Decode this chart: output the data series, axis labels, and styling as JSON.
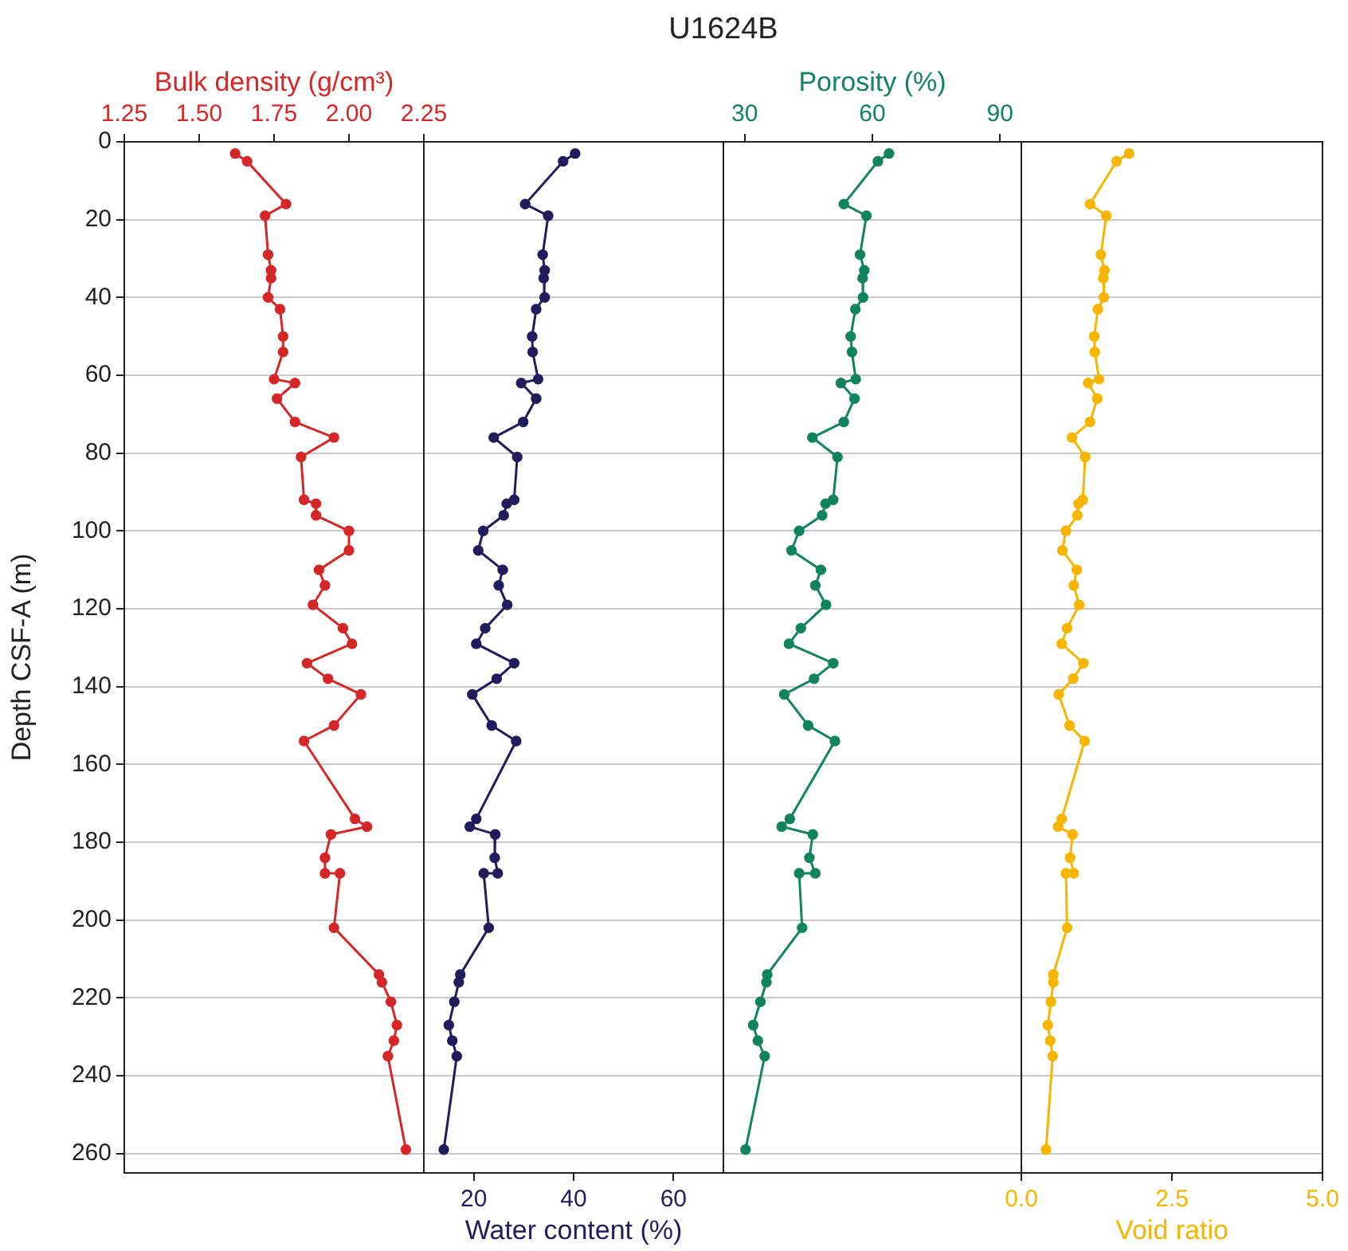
{
  "chart_data": [
    {
      "type": "line",
      "xlabel": "Bulk density (g/cm³)",
      "ylabel": "Depth CSF-A (m)",
      "xlim": [
        1.25,
        2.25
      ],
      "xticks": [
        1.25,
        {
          "value": 1.5,
          "label": "1.50"
        },
        1.75,
        {
          "value": 2,
          "label": "2.00"
        },
        2.25
      ],
      "ylim": [
        265,
        0
      ],
      "yticks": [
        0,
        20,
        40,
        60,
        80,
        100,
        120,
        140,
        160,
        180,
        200,
        220,
        240,
        260
      ],
      "grid": "y",
      "marker": "circle",
      "series": [
        {
          "color": "#d62728",
          "x": [
            1.62,
            1.66,
            1.79,
            1.72,
            1.73,
            1.74,
            1.74,
            1.73,
            1.77,
            1.78,
            1.78,
            1.75,
            1.82,
            1.76,
            1.82,
            1.95,
            1.84,
            1.85,
            1.89,
            1.89,
            2.0,
            2.0,
            1.9,
            1.92,
            1.88,
            1.98,
            2.01,
            1.86,
            1.93,
            2.04,
            1.95,
            1.85,
            2.02,
            2.06,
            1.94,
            1.92,
            1.92,
            1.97,
            1.95,
            2.1,
            2.11,
            2.14,
            2.16,
            2.15,
            2.13,
            2.19
          ],
          "values": [
            3,
            5,
            16,
            19,
            29,
            33,
            35,
            40,
            43,
            50,
            54,
            61,
            62,
            66,
            72,
            76,
            81,
            92,
            93,
            96,
            100,
            105,
            110,
            114,
            119,
            125,
            129,
            134,
            138,
            142,
            150,
            154,
            174,
            176,
            178,
            184,
            188,
            188,
            202,
            214,
            216,
            221,
            227,
            231,
            235,
            259
          ]
        }
      ]
    },
    {
      "type": "line",
      "xlabel": "Water content (%)",
      "xlim": [
        10,
        70
      ],
      "xticks": [
        20,
        40,
        60
      ],
      "ylim": [
        265,
        0
      ],
      "yticks": [
        0,
        20,
        40,
        60,
        80,
        100,
        120,
        140,
        160,
        180,
        200,
        220,
        240,
        260
      ],
      "grid": "y",
      "tick_labels": "x",
      "marker": "circle",
      "series": [
        {
          "color": "#221c5c",
          "x": [
            40.3,
            37.9,
            30.3,
            34.9,
            33.8,
            34.2,
            34.0,
            34.2,
            32.5,
            31.7,
            31.8,
            32.9,
            29.5,
            32.5,
            29.9,
            24.0,
            28.7,
            28.1,
            26.6,
            26.0,
            21.9,
            20.9,
            25.8,
            25.0,
            26.7,
            22.3,
            20.5,
            28.1,
            24.6,
            19.7,
            23.6,
            28.5,
            20.5,
            19.2,
            24.3,
            24.2,
            24.8,
            22.0,
            23.0,
            17.3,
            17.0,
            16.1,
            15.0,
            15.7,
            16.6,
            14.0
          ],
          "values": [
            3,
            5,
            16,
            19,
            29,
            33,
            35,
            40,
            43,
            50,
            54,
            61,
            62,
            66,
            72,
            76,
            81,
            92,
            93,
            96,
            100,
            105,
            110,
            114,
            119,
            125,
            129,
            134,
            138,
            142,
            150,
            154,
            174,
            176,
            178,
            184,
            188,
            188,
            202,
            214,
            216,
            221,
            227,
            231,
            235,
            259
          ]
        }
      ]
    },
    {
      "type": "line",
      "title": "U1624B",
      "xlabel": "Porosity (%)",
      "xlim": [
        25,
        95
      ],
      "xticks": [
        30,
        60,
        90
      ],
      "ylim": [
        265,
        0
      ],
      "yticks": [
        0,
        20,
        40,
        60,
        80,
        100,
        120,
        140,
        160,
        180,
        200,
        220,
        240,
        260
      ],
      "grid": "y",
      "tick_labels": "x",
      "marker": "circle",
      "series": [
        {
          "color": "#11845b",
          "x": [
            63.9,
            61.3,
            53.3,
            58.6,
            57.1,
            58.1,
            57.7,
            57.8,
            56.0,
            54.9,
            55.2,
            56.1,
            52.6,
            55.8,
            53.3,
            45.9,
            51.8,
            50.8,
            49.0,
            48.2,
            42.8,
            41.0,
            47.9,
            46.6,
            49.1,
            43.2,
            40.4,
            50.8,
            46.3,
            39.3,
            44.9,
            51.2,
            40.6,
            38.7,
            46.0,
            45.2,
            46.6,
            42.8,
            43.5,
            35.3,
            35.1,
            33.7,
            32.0,
            33.1,
            34.7,
            30.2
          ],
          "values": [
            3,
            5,
            16,
            19,
            29,
            33,
            35,
            40,
            43,
            50,
            54,
            61,
            62,
            66,
            72,
            76,
            81,
            92,
            93,
            96,
            100,
            105,
            110,
            114,
            119,
            125,
            129,
            134,
            138,
            142,
            150,
            154,
            174,
            176,
            178,
            184,
            188,
            188,
            202,
            214,
            216,
            221,
            227,
            231,
            235,
            259
          ]
        }
      ]
    },
    {
      "type": "line",
      "xlabel": "Void ratio",
      "xlim": [
        0,
        5
      ],
      "xticks": [
        {
          "value": 0,
          "label": "0.0"
        },
        2.5,
        {
          "value": 5,
          "label": "5.0"
        }
      ],
      "ylim": [
        265,
        0
      ],
      "yticks": [
        0,
        20,
        40,
        60,
        80,
        100,
        120,
        140,
        160,
        180,
        200,
        220,
        240,
        260
      ],
      "grid": "y",
      "tick_labels": "x",
      "marker": "circle",
      "series": [
        {
          "color": "#f7b500",
          "x": [
            1.79,
            1.58,
            1.14,
            1.41,
            1.32,
            1.38,
            1.36,
            1.37,
            1.27,
            1.21,
            1.22,
            1.29,
            1.11,
            1.26,
            1.14,
            0.84,
            1.06,
            1.02,
            0.95,
            0.93,
            0.74,
            0.68,
            0.92,
            0.87,
            0.96,
            0.76,
            0.67,
            1.03,
            0.86,
            0.62,
            0.8,
            1.05,
            0.67,
            0.61,
            0.85,
            0.81,
            0.87,
            0.74,
            0.76,
            0.53,
            0.53,
            0.49,
            0.44,
            0.48,
            0.52,
            0.41
          ],
          "values": [
            3,
            5,
            16,
            19,
            29,
            33,
            35,
            40,
            43,
            50,
            54,
            61,
            62,
            66,
            72,
            76,
            81,
            92,
            93,
            96,
            100,
            105,
            110,
            114,
            119,
            125,
            129,
            134,
            138,
            142,
            150,
            154,
            174,
            176,
            178,
            184,
            188,
            188,
            202,
            214,
            216,
            221,
            227,
            231,
            235,
            259
          ]
        }
      ]
    }
  ]
}
